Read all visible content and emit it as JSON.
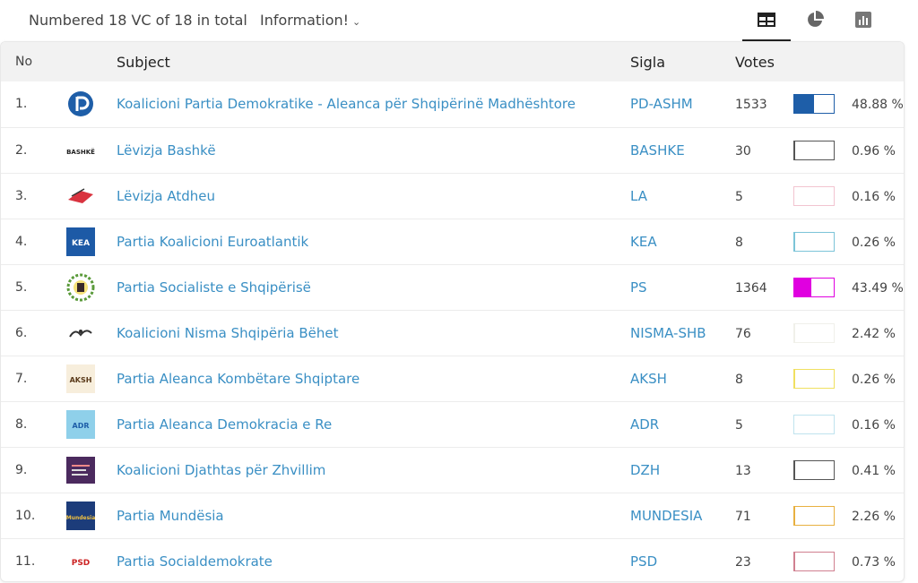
{
  "header": {
    "summary": "Numbered 18 VC of 18 in total",
    "info_menu": "Information!"
  },
  "view_tabs": [
    {
      "icon": "table-icon",
      "active": true
    },
    {
      "icon": "pie-chart-icon",
      "active": false
    },
    {
      "icon": "bar-chart-icon",
      "active": false
    }
  ],
  "columns": {
    "no": "No",
    "subject": "Subject",
    "sigla": "Sigla",
    "votes": "Votes",
    "percent": "%"
  },
  "rows": [
    {
      "no": "1.",
      "subject": "Koalicioni Partia Demokratike - Aleanca për Shqipërinë Madhështore",
      "sigla": "PD-ASHM",
      "votes": "1533",
      "percent": "48.88 %",
      "share": 0.4888,
      "color": "#1e5ea8",
      "logo": "pd-logo-icon"
    },
    {
      "no": "2.",
      "subject": "Lëvizja Bashkë",
      "sigla": "BASHKE",
      "votes": "30",
      "percent": "0.96 %",
      "share": 0.0096,
      "color": "#555555",
      "logo": "bashke-logo-icon",
      "logo_text": "BASHKË"
    },
    {
      "no": "3.",
      "subject": "Lëvizja Atdheu",
      "sigla": "LA",
      "votes": "5",
      "percent": "0.16 %",
      "share": 0.0016,
      "color": "#f2c4d0",
      "logo": "la-logo-icon"
    },
    {
      "no": "4.",
      "subject": "Partia Koalicioni Euroatlantik",
      "sigla": "KEA",
      "votes": "8",
      "percent": "0.26 %",
      "share": 0.0026,
      "color": "#7cc4d8",
      "logo": "kea-logo-icon",
      "logo_text": "KEA"
    },
    {
      "no": "5.",
      "subject": "Partia Socialiste e Shqipërisë",
      "sigla": "PS",
      "votes": "1364",
      "percent": "43.49 %",
      "share": 0.4349,
      "color": "#e000e0",
      "logo": "ps-logo-icon"
    },
    {
      "no": "6.",
      "subject": "Koalicioni Nisma Shqipëria Bëhet",
      "sigla": "NISMA-SHB",
      "votes": "76",
      "percent": "2.42 %",
      "share": 0.0242,
      "color": "#f0f0ea",
      "logo": "nisma-logo-icon"
    },
    {
      "no": "7.",
      "subject": "Partia Aleanca Kombëtare Shqiptare",
      "sigla": "AKSH",
      "votes": "8",
      "percent": "0.26 %",
      "share": 0.0026,
      "color": "#f0e060",
      "logo": "aksh-logo-icon",
      "logo_text": "AKSH"
    },
    {
      "no": "8.",
      "subject": "Partia Aleanca Demokracia e Re",
      "sigla": "ADR",
      "votes": "5",
      "percent": "0.16 %",
      "share": 0.0016,
      "color": "#bfe3ee",
      "logo": "adr-logo-icon",
      "logo_text": "ADR"
    },
    {
      "no": "9.",
      "subject": "Koalicioni Djathtas për Zhvillim",
      "sigla": "DZH",
      "votes": "13",
      "percent": "0.41 %",
      "share": 0.0041,
      "color": "#555555",
      "logo": "dzh-logo-icon"
    },
    {
      "no": "10.",
      "subject": "Partia Mundësia",
      "sigla": "MUNDESIA",
      "votes": "71",
      "percent": "2.26 %",
      "share": 0.0226,
      "color": "#e8b040",
      "logo": "mundesia-logo-icon",
      "logo_text": "Mundesia"
    },
    {
      "no": "11.",
      "subject": "Partia Socialdemokrate",
      "sigla": "PSD",
      "votes": "23",
      "percent": "0.73 %",
      "share": 0.0073,
      "color": "#d08090",
      "logo": "psd-logo-icon",
      "logo_text": "PSD"
    }
  ]
}
